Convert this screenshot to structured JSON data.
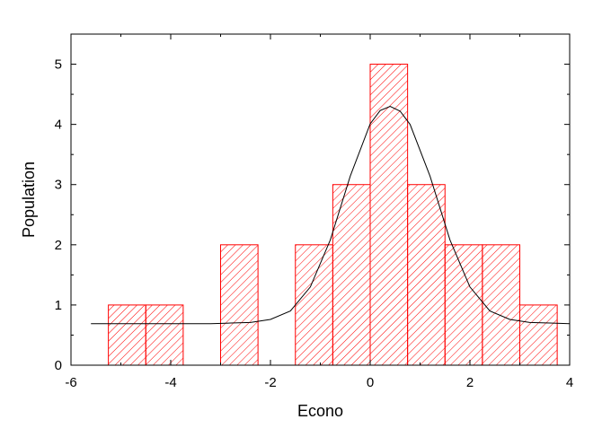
{
  "chart_data": {
    "type": "bar",
    "subtype": "histogram",
    "xlabel": "Econo",
    "ylabel": "Population",
    "xlim": [
      -6,
      4
    ],
    "ylim": [
      0,
      5.5
    ],
    "x_ticks": [
      -6,
      -4,
      -2,
      0,
      2,
      4
    ],
    "y_ticks": [
      0,
      1,
      2,
      3,
      4,
      5
    ],
    "bins": [
      {
        "x0": -5.25,
        "x1": -4.5,
        "value": 1
      },
      {
        "x0": -4.5,
        "x1": -3.75,
        "value": 1
      },
      {
        "x0": -3.0,
        "x1": -2.25,
        "value": 2
      },
      {
        "x0": -1.5,
        "x1": -0.75,
        "value": 2
      },
      {
        "x0": -0.75,
        "x1": 0.0,
        "value": 3
      },
      {
        "x0": 0.0,
        "x1": 0.75,
        "value": 5
      },
      {
        "x0": 0.75,
        "x1": 1.5,
        "value": 3
      },
      {
        "x0": 1.5,
        "x1": 2.25,
        "value": 2
      },
      {
        "x0": 2.25,
        "x1": 3.0,
        "value": 2
      },
      {
        "x0": 3.0,
        "x1": 3.75,
        "value": 1
      }
    ],
    "fit_curve": {
      "x": [
        -5.6,
        -5.2,
        -4.8,
        -4.4,
        -4.0,
        -3.6,
        -3.2,
        -2.8,
        -2.4,
        -2.0,
        -1.6,
        -1.2,
        -0.8,
        -0.4,
        0.0,
        0.2,
        0.4,
        0.6,
        0.8,
        1.2,
        1.6,
        2.0,
        2.4,
        2.8,
        3.2,
        3.6,
        4.0
      ],
      "y": [
        0.69,
        0.69,
        0.69,
        0.69,
        0.69,
        0.69,
        0.69,
        0.7,
        0.71,
        0.76,
        0.9,
        1.3,
        2.08,
        3.14,
        4.01,
        4.23,
        4.3,
        4.22,
        4.0,
        3.14,
        2.08,
        1.3,
        0.9,
        0.76,
        0.71,
        0.7,
        0.69
      ]
    },
    "colors": {
      "bar": "#ff0000",
      "curve": "#000000",
      "axis": "#000000"
    },
    "grid": false,
    "legend": "none"
  }
}
